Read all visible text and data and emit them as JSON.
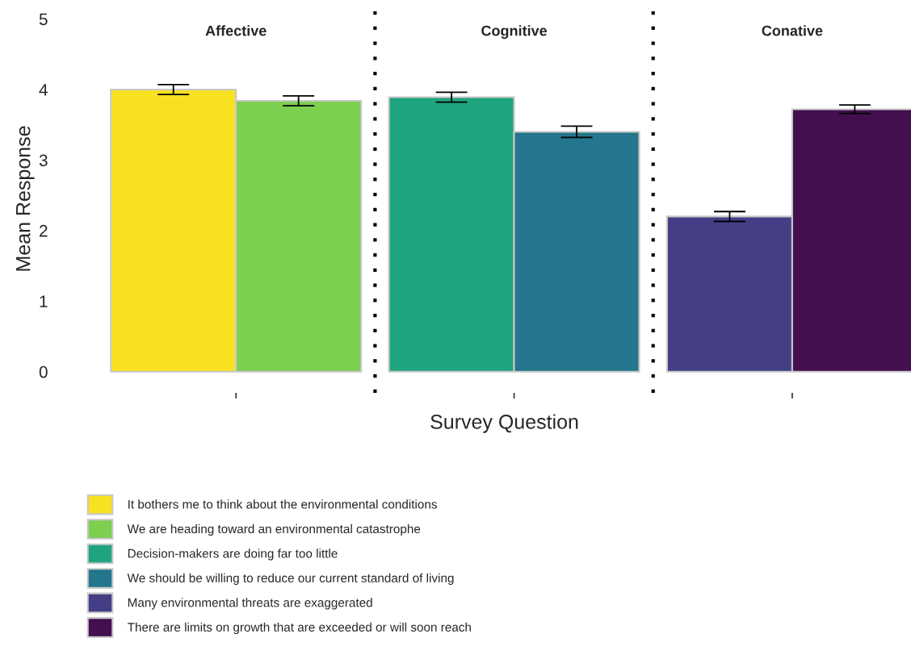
{
  "chart_data": {
    "type": "bar",
    "xlabel": "Survey Question",
    "ylabel": "Mean Response",
    "categories": [
      "Affective",
      "Cognitive",
      "Conative"
    ],
    "series": [
      {
        "name": "It bothers me to think about the environmental conditions",
        "color": "#f8e121",
        "values": [
          4.0,
          null,
          null
        ],
        "errors": [
          0.07,
          null,
          null
        ]
      },
      {
        "name": "We are heading toward an environmental catastrophe",
        "color": "#7ccf4f",
        "values": [
          3.84,
          null,
          null
        ],
        "errors": [
          0.07,
          null,
          null
        ]
      },
      {
        "name": "Decision-makers are doing far too little",
        "color": "#1fa480",
        "values": [
          null,
          3.89,
          null
        ],
        "errors": [
          null,
          0.07,
          null
        ]
      },
      {
        "name": "We should be willing to reduce our current standard of living",
        "color": "#23768b",
        "values": [
          null,
          3.4,
          null
        ],
        "errors": [
          null,
          0.08,
          null
        ]
      },
      {
        "name": "Many environmental threats are exaggerated",
        "color": "#433e85",
        "values": [
          null,
          null,
          2.2
        ],
        "errors": [
          null,
          null,
          0.07
        ]
      },
      {
        "name": "There are limits on growth that are exceeded or will soon reach",
        "color": "#430f4e",
        "values": [
          null,
          null,
          3.72
        ],
        "errors": [
          null,
          null,
          0.06
        ]
      }
    ],
    "ylim": [
      -0.3,
      5.2
    ],
    "yticks": [
      0,
      1,
      2,
      3,
      4,
      5
    ],
    "grid": false,
    "legend": "bottom",
    "tick_labels": "y"
  }
}
